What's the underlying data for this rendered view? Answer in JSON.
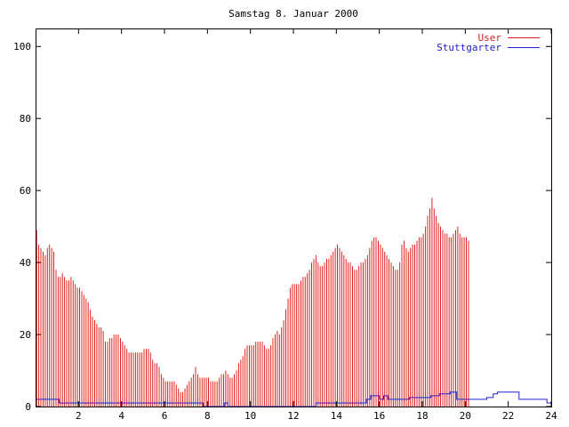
{
  "chart_data": {
    "type": "bar",
    "title": "Samstag 8. Januar 2000",
    "xlabel": "",
    "ylabel": "",
    "xlim": [
      0,
      24
    ],
    "ylim": [
      0,
      105
    ],
    "xticks": [
      2,
      4,
      6,
      8,
      10,
      12,
      14,
      16,
      18,
      20,
      22,
      24
    ],
    "yticks": [
      0,
      20,
      40,
      60,
      80,
      100
    ],
    "grid": false,
    "legend_position": "top-right",
    "colors": {
      "User": "#e02020",
      "Stuttgarter": "#2020d0"
    },
    "series": [
      {
        "name": "User",
        "style": "impulses",
        "x_start": 0.05,
        "x_step": 0.1,
        "values": [
          49,
          45,
          44,
          43,
          42,
          44,
          45,
          44,
          43,
          38,
          36,
          36,
          37,
          36,
          35,
          35,
          36,
          35,
          34,
          33,
          33,
          32,
          31,
          30,
          29,
          27,
          25,
          24,
          23,
          22,
          22,
          21,
          18,
          18,
          19,
          19,
          20,
          20,
          20,
          19,
          18,
          17,
          16,
          15,
          15,
          15,
          15,
          15,
          15,
          15,
          16,
          16,
          16,
          15,
          13,
          12,
          12,
          11,
          9,
          8,
          7,
          7,
          7,
          7,
          7,
          6,
          5,
          4,
          4,
          5,
          6,
          7,
          8,
          9,
          11,
          9,
          8,
          8,
          8,
          8,
          8,
          7,
          7,
          7,
          7,
          8,
          9,
          9,
          10,
          9,
          8,
          8,
          9,
          10,
          12,
          13,
          14,
          16,
          17,
          17,
          17,
          17,
          18,
          18,
          18,
          18,
          17,
          16,
          16,
          17,
          19,
          20,
          21,
          20,
          22,
          24,
          27,
          30,
          33,
          34,
          34,
          34,
          34,
          35,
          36,
          36,
          37,
          38,
          40,
          41,
          42,
          40,
          39,
          39,
          40,
          41,
          41,
          42,
          43,
          44,
          45,
          44,
          43,
          42,
          41,
          40,
          40,
          39,
          38,
          38,
          39,
          40,
          40,
          41,
          42,
          44,
          46,
          47,
          47,
          46,
          45,
          44,
          43,
          42,
          41,
          40,
          39,
          38,
          38,
          40,
          45,
          46,
          44,
          43,
          44,
          45,
          45,
          46,
          47,
          47,
          48,
          50,
          53,
          55,
          58,
          55,
          53,
          51,
          50,
          49,
          48,
          48,
          47,
          47,
          48,
          49,
          50,
          48,
          47,
          47,
          47,
          46
        ]
      },
      {
        "name": "Stuttgarter",
        "style": "steps",
        "points": [
          [
            0,
            2
          ],
          [
            1,
            2
          ],
          [
            1.1,
            1
          ],
          [
            7.7,
            1
          ],
          [
            7.8,
            0
          ],
          [
            8.75,
            0
          ],
          [
            8.8,
            1
          ],
          [
            8.9,
            1
          ],
          [
            8.95,
            0
          ],
          [
            13,
            0
          ],
          [
            13.05,
            1
          ],
          [
            15.2,
            1
          ],
          [
            15.4,
            2
          ],
          [
            15.6,
            3
          ],
          [
            15.9,
            3
          ],
          [
            16,
            2
          ],
          [
            16.2,
            3
          ],
          [
            16.4,
            2
          ],
          [
            17.2,
            2
          ],
          [
            17.4,
            2.5
          ],
          [
            18.2,
            2.5
          ],
          [
            18.4,
            3
          ],
          [
            18.8,
            3.5
          ],
          [
            19.3,
            4
          ],
          [
            19.6,
            2
          ],
          [
            20.9,
            2
          ],
          [
            21,
            2.5
          ],
          [
            21.3,
            3.5
          ],
          [
            21.5,
            4
          ],
          [
            22.4,
            4
          ],
          [
            22.5,
            2
          ],
          [
            23.6,
            2
          ],
          [
            23.8,
            1
          ],
          [
            24,
            1
          ]
        ]
      }
    ]
  }
}
